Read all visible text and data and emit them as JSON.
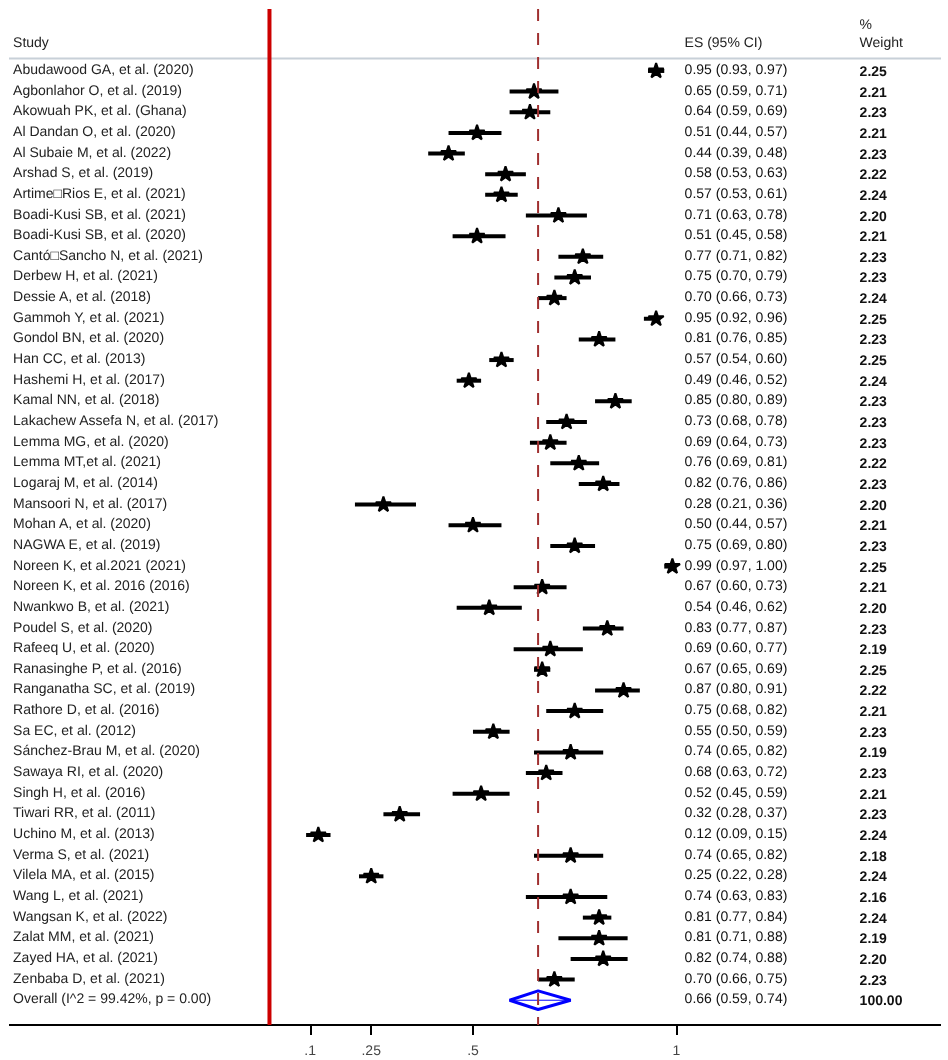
{
  "chart_data": {
    "type": "scatter",
    "orientation": "horizontal",
    "categories": [
      "Abudawood GA, et al. (2020)",
      "Agbonlahor O, et al. (2019)",
      "Akowuah PK, et al. (Ghana)",
      "Al Dandan O, et al. (2020)",
      "Al Subaie M, et al. (2022)",
      "Arshad S, et al. (2019)",
      "Artime□Rios E, et al. (2021)",
      "Boadi-Kusi SB, et al. (2021)",
      "Boadi-Kusi SB, et al. (2020)",
      "Cantó□Sancho N, et al. (2021)",
      "Derbew H, et al. (2021)",
      "Dessie A, et al. (2018)",
      "Gammoh Y, et al. (2021)",
      "Gondol BN, et al. (2020)",
      "Han CC, et al. (2013)",
      "Hashemi H, et al. (2017)",
      "Kamal NN, et al. (2018)",
      "Lakachew Assefa N, et al. (2017)",
      "Lemma MG, et al. (2020)",
      "Lemma MT,et al. (2021)",
      "Logaraj M, et al. (2014)",
      "Mansoori N, et al. (2017)",
      "Mohan A, et al. (2020)",
      "NAGWA E, et al. (2019)",
      "Noreen K, et al.2021 (2021)",
      "Noreen K, et al. 2016 (2016)",
      "Nwankwo B, et al. (2021)",
      "Poudel S, et al. (2020)",
      "Rafeeq U, et al. (2020)",
      "Ranasinghe P, et al. (2016)",
      "Ranganatha SC, et al. (2019)",
      "Rathore D, et al. (2016)",
      "Sa EC, et al. (2012)",
      "Sánchez-Brau M, et al. (2020)",
      "Sawaya RI, et al. (2020)",
      "Singh H, et al. (2016)",
      "Tiwari RR, et al. (2011)",
      "Uchino M, et al. (2013)",
      "Verma S, et al. (2021)",
      "Vilela MA, et al. (2015)",
      "Wang L, et al. (2021)",
      "Wangsan K, et al. (2022)",
      "Zalat MM, et al. (2021)",
      "Zayed HA, et al. (2021)",
      "Zenbaba D, et al. (2021)",
      "Overall (I^2 = 99.42%, p = 0.00)"
    ],
    "series": [
      {
        "color": "#000000",
        "marker": "star",
        "values": [
          0.95,
          0.65,
          0.64,
          0.51,
          0.44,
          0.58,
          0.57,
          0.71,
          0.51,
          0.77,
          0.75,
          0.7,
          0.95,
          0.81,
          0.57,
          0.49,
          0.85,
          0.73,
          0.69,
          0.76,
          0.82,
          0.28,
          0.5,
          0.75,
          0.99,
          0.67,
          0.54,
          0.83,
          0.69,
          0.67,
          0.87,
          0.75,
          0.55,
          0.74,
          0.68,
          0.52,
          0.32,
          0.12,
          0.74,
          0.25,
          0.74,
          0.81,
          0.81,
          0.82,
          0.7,
          null
        ],
        "errors": [
          [
            0.93,
            0.97
          ],
          [
            0.59,
            0.71
          ],
          [
            0.59,
            0.69
          ],
          [
            0.44,
            0.57
          ],
          [
            0.39,
            0.48
          ],
          [
            0.53,
            0.63
          ],
          [
            0.53,
            0.61
          ],
          [
            0.63,
            0.78
          ],
          [
            0.45,
            0.58
          ],
          [
            0.71,
            0.82
          ],
          [
            0.7,
            0.79
          ],
          [
            0.66,
            0.73
          ],
          [
            0.92,
            0.96
          ],
          [
            0.76,
            0.85
          ],
          [
            0.54,
            0.6
          ],
          [
            0.46,
            0.52
          ],
          [
            0.8,
            0.89
          ],
          [
            0.68,
            0.78
          ],
          [
            0.64,
            0.73
          ],
          [
            0.69,
            0.81
          ],
          [
            0.76,
            0.86
          ],
          [
            0.21,
            0.36
          ],
          [
            0.44,
            0.57
          ],
          [
            0.69,
            0.8
          ],
          [
            0.97,
            1.0
          ],
          [
            0.6,
            0.73
          ],
          [
            0.46,
            0.62
          ],
          [
            0.77,
            0.87
          ],
          [
            0.6,
            0.77
          ],
          [
            0.65,
            0.69
          ],
          [
            0.8,
            0.91
          ],
          [
            0.68,
            0.82
          ],
          [
            0.5,
            0.59
          ],
          [
            0.65,
            0.82
          ],
          [
            0.63,
            0.72
          ],
          [
            0.45,
            0.59
          ],
          [
            0.28,
            0.37
          ],
          [
            0.09,
            0.15
          ],
          [
            0.65,
            0.82
          ],
          [
            0.22,
            0.28
          ],
          [
            0.63,
            0.83
          ],
          [
            0.77,
            0.84
          ],
          [
            0.71,
            0.88
          ],
          [
            0.74,
            0.88
          ],
          [
            0.66,
            0.75
          ],
          null
        ]
      },
      {
        "color": "#0000ff",
        "marker": "diamond",
        "values": [
          null,
          null,
          null,
          null,
          null,
          null,
          null,
          null,
          null,
          null,
          null,
          null,
          null,
          null,
          null,
          null,
          null,
          null,
          null,
          null,
          null,
          null,
          null,
          null,
          null,
          null,
          null,
          null,
          null,
          null,
          null,
          null,
          null,
          null,
          null,
          null,
          null,
          null,
          null,
          null,
          null,
          null,
          null,
          null,
          null,
          0.66
        ],
        "errors": [
          null,
          null,
          null,
          null,
          null,
          null,
          null,
          null,
          null,
          null,
          null,
          null,
          null,
          null,
          null,
          null,
          null,
          null,
          null,
          null,
          null,
          null,
          null,
          null,
          null,
          null,
          null,
          null,
          null,
          null,
          null,
          null,
          null,
          null,
          null,
          null,
          null,
          null,
          null,
          null,
          null,
          null,
          null,
          null,
          null,
          [
            0.59,
            0.74
          ]
        ]
      }
    ],
    "xlim": [
      -0.64,
      1.65
    ],
    "xticks": [
      {
        "value": 0.1,
        "label": ".1"
      },
      {
        "value": 0.25,
        "label": ".25"
      },
      {
        "value": 0.5,
        "label": ".5"
      },
      1
    ],
    "ref_lines": [
      {
        "axis": "x",
        "value": 0,
        "color": "#cc0000",
        "line_style": "solid"
      },
      {
        "axis": "x",
        "value": 0.66,
        "color": "#a03030",
        "line_style": "dashed"
      }
    ],
    "grid": false,
    "annotations": [
      "Study",
      "ES (95% CI)",
      "% Weight",
      "0.95 (0.93, 0.97)",
      "2.25",
      "0.65 (0.59, 0.71)",
      "2.21",
      "0.64 (0.59, 0.69)",
      "2.23",
      "0.51 (0.44, 0.57)",
      "2.21",
      "0.44 (0.39, 0.48)",
      "2.23",
      "0.58 (0.53, 0.63)",
      "2.22",
      "0.57 (0.53, 0.61)",
      "2.24",
      "0.71 (0.63, 0.78)",
      "2.20",
      "0.51 (0.45, 0.58)",
      "2.21",
      "0.77 (0.71, 0.82)",
      "2.23",
      "0.75 (0.70, 0.79)",
      "2.23",
      "0.70 (0.66, 0.73)",
      "2.24",
      "0.95 (0.92, 0.96)",
      "2.25",
      "0.81 (0.76, 0.85)",
      "2.23",
      "0.57 (0.54, 0.60)",
      "2.25",
      "0.49 (0.46, 0.52)",
      "2.24",
      "0.85 (0.80, 0.89)",
      "2.23",
      "0.73 (0.68, 0.78)",
      "2.23",
      "0.69 (0.64, 0.73)",
      "2.23",
      "0.76 (0.69, 0.81)",
      "2.22",
      "0.82 (0.76, 0.86)",
      "2.23",
      "0.28 (0.21, 0.36)",
      "2.20",
      "0.50 (0.44, 0.57)",
      "2.21",
      "0.75 (0.69, 0.80)",
      "2.23",
      "0.99 (0.97, 1.00)",
      "2.25",
      "0.67 (0.60, 0.73)",
      "2.21",
      "0.54 (0.46, 0.62)",
      "2.20",
      "0.83 (0.77, 0.87)",
      "2.23",
      "0.69 (0.60, 0.77)",
      "2.19",
      "0.67 (0.65, 0.69)",
      "2.25",
      "0.87 (0.80, 0.91)",
      "2.22",
      "0.75 (0.68, 0.82)",
      "2.21",
      "0.55 (0.50, 0.59)",
      "2.23",
      "0.74 (0.65, 0.82)",
      "2.19",
      "0.68 (0.63, 0.72)",
      "2.23",
      "0.52 (0.45, 0.59)",
      "2.21",
      "0.32 (0.28, 0.37)",
      "2.23",
      "0.12 (0.09, 0.15)",
      "2.24",
      "0.74 (0.65, 0.82)",
      "2.18",
      "0.25 (0.22, 0.28)",
      "2.24",
      "0.74 (0.63, 0.83)",
      "2.16",
      "0.81 (0.77, 0.84)",
      "2.24",
      "0.81 (0.71, 0.88)",
      "2.19",
      "0.82 (0.74, 0.88)",
      "2.20",
      "0.70 (0.66, 0.75)",
      "2.23",
      "0.66 (0.59, 0.74)",
      "100.00"
    ]
  }
}
